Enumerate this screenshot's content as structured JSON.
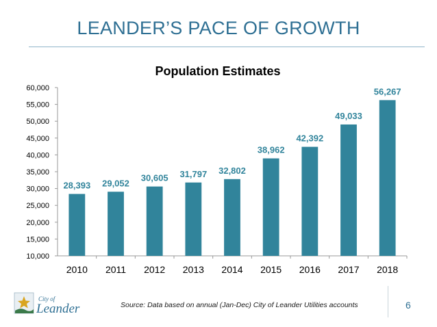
{
  "slide": {
    "title": "LEANDER’S PACE OF GROWTH",
    "source_text": "Source:  Data based on annual (Jan-Dec) City of Leander Utilities accounts",
    "page_number": "6",
    "logo": {
      "text_top": "City of",
      "text_main": "Leander",
      "icon": "star-sun-logo-icon"
    }
  },
  "colors": {
    "bar": "#31849b",
    "label": "#31849b",
    "title": "#2e6f93",
    "axis": "#999999"
  },
  "chart_data": {
    "type": "bar",
    "title": "Population Estimates",
    "categories": [
      "2010",
      "2011",
      "2012",
      "2013",
      "2014",
      "2015",
      "2016",
      "2017",
      "2018"
    ],
    "values": [
      28393,
      29052,
      30605,
      31797,
      32802,
      38962,
      42392,
      49033,
      56267
    ],
    "value_labels": [
      "28,393",
      "29,052",
      "30,605",
      "31,797",
      "32,802",
      "38,962",
      "42,392",
      "49,033",
      "56,267"
    ],
    "xlabel": "",
    "ylabel": "",
    "ylim": [
      10000,
      60000
    ],
    "yticks": [
      10000,
      15000,
      20000,
      25000,
      30000,
      35000,
      40000,
      45000,
      50000,
      55000,
      60000
    ],
    "ytick_labels": [
      "10,000",
      "15,000",
      "20,000",
      "25,000",
      "30,000",
      "35,000",
      "40,000",
      "45,000",
      "50,000",
      "55,000",
      "60,000"
    ],
    "grid": false,
    "legend": "none"
  }
}
